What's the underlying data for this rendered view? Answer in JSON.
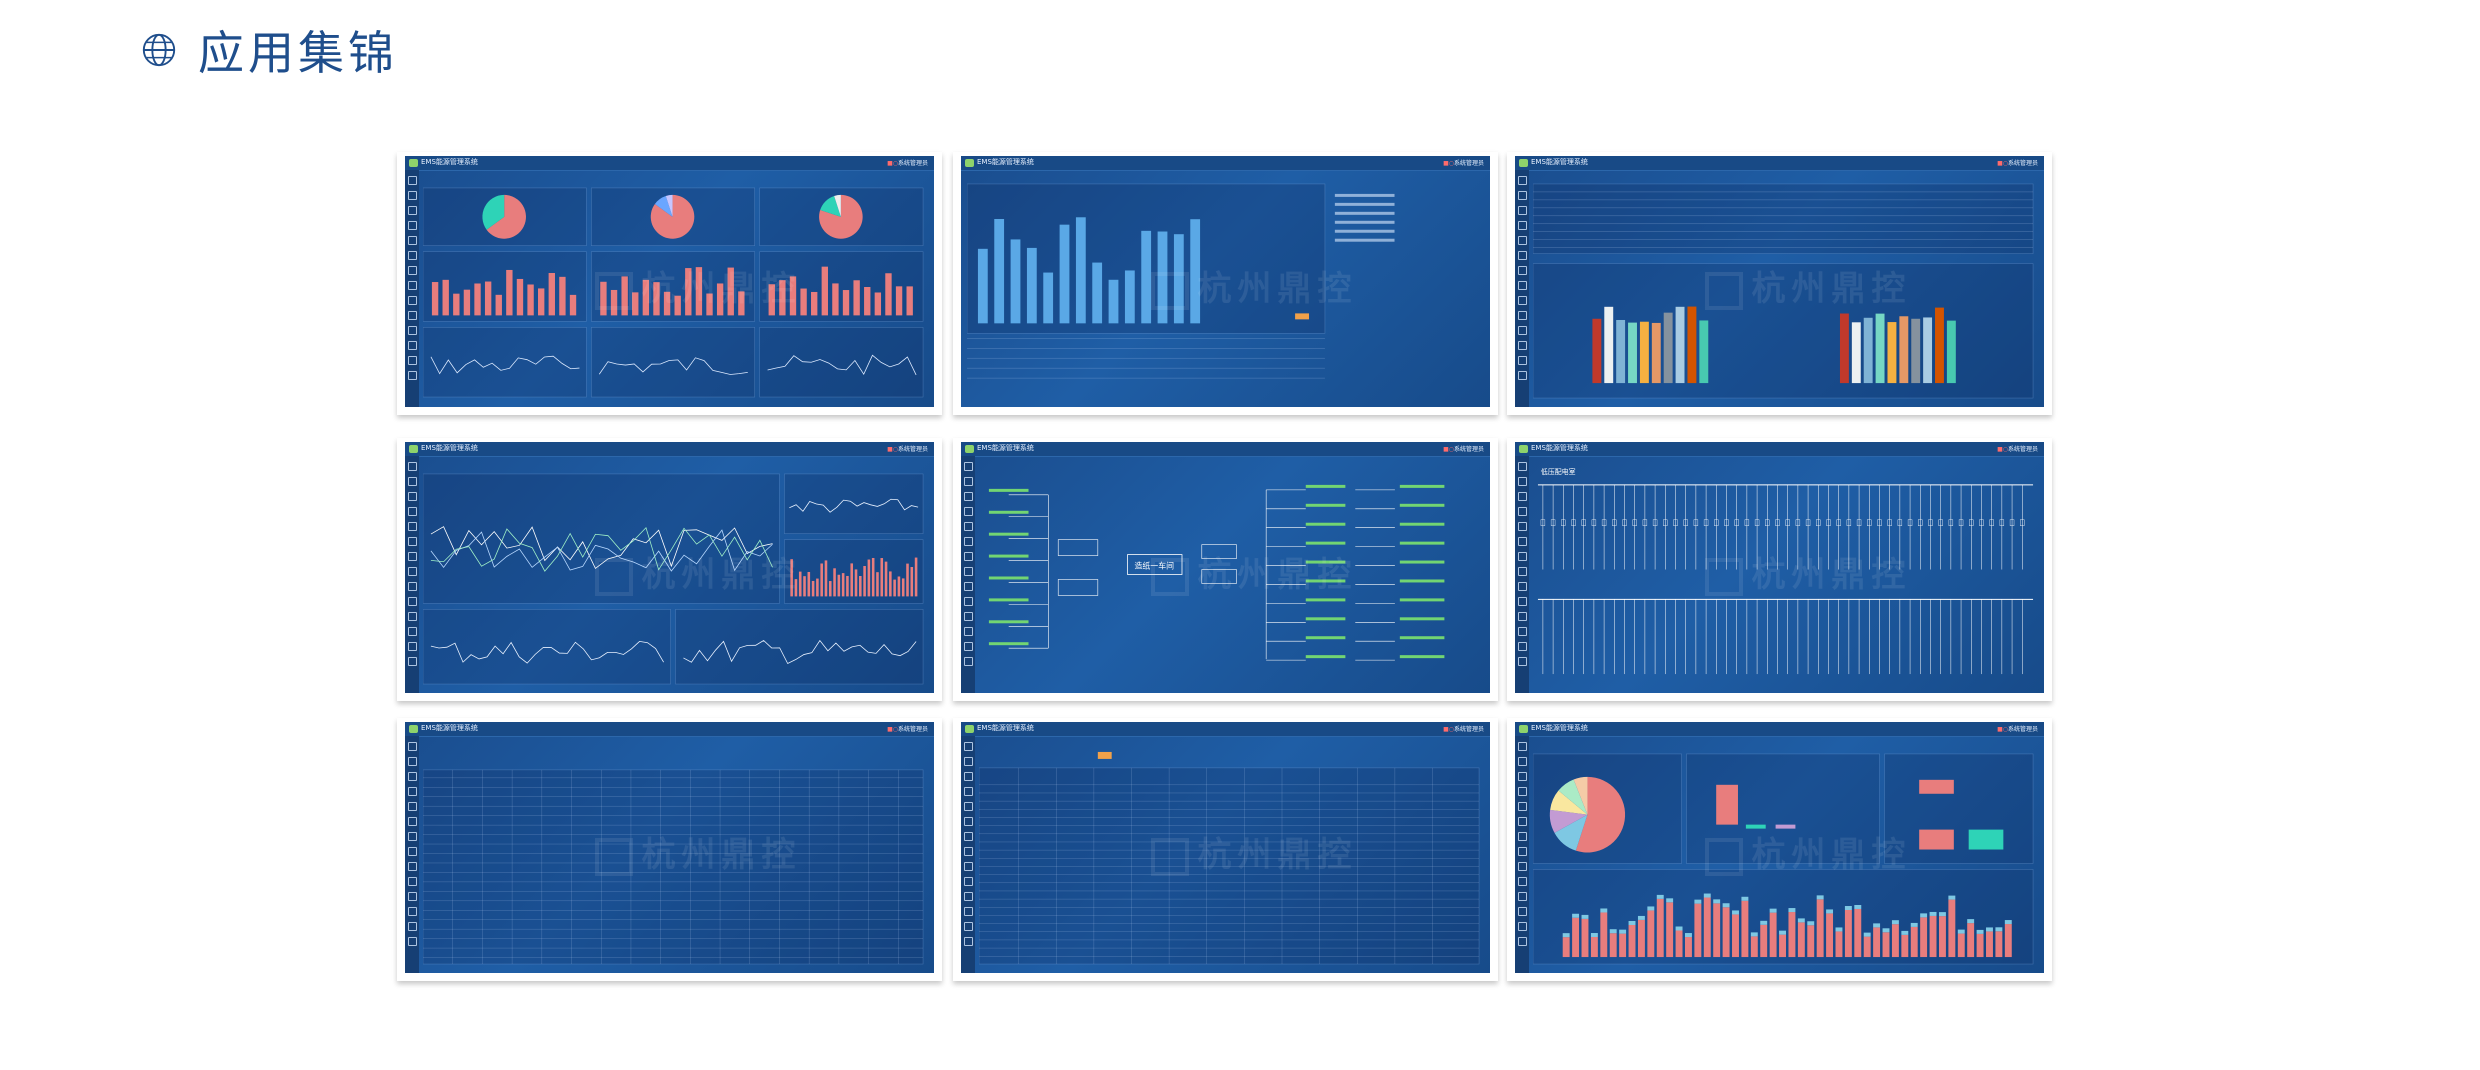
{
  "header": {
    "title": "应用集锦",
    "icon": "globe-icon"
  },
  "colors": {
    "title": "#1f4e8c",
    "screen_bg": "#1a4d8e",
    "bar_red": "#e87d7d",
    "bar_blue": "#5aa8e6",
    "line_green": "#72d572",
    "pie_teal": "#2ed3b7"
  },
  "screens": [
    {
      "app_name": "EMS能源管理系统",
      "user": "系统管理员",
      "watermark": "杭州鼎控"
    },
    {
      "app_name": "EMS能源管理系统",
      "user": "系统管理员",
      "watermark": "杭州鼎控"
    },
    {
      "app_name": "EMS能源管理系统",
      "user": "系统管理员",
      "watermark": "杭州鼎控"
    },
    {
      "app_name": "EMS能源管理系统",
      "user": "系统管理员",
      "watermark": "杭州鼎控"
    },
    {
      "app_name": "EMS能源管理系统",
      "user": "系统管理员",
      "watermark": "杭州鼎控"
    },
    {
      "app_name": "EMS能源管理系统",
      "user": "系统管理员",
      "watermark": "杭州鼎控"
    },
    {
      "app_name": "EMS能源管理系统",
      "user": "系统管理员",
      "watermark": "杭州鼎控"
    },
    {
      "app_name": "EMS能源管理系统",
      "user": "系统管理员",
      "watermark": "杭州鼎控"
    },
    {
      "app_name": "EMS能源管理系统",
      "user": "系统管理员",
      "watermark": "杭州鼎控"
    }
  ],
  "diagram_labels": {
    "center_node": "造纸一车间",
    "substation_title": "低压配电室"
  }
}
